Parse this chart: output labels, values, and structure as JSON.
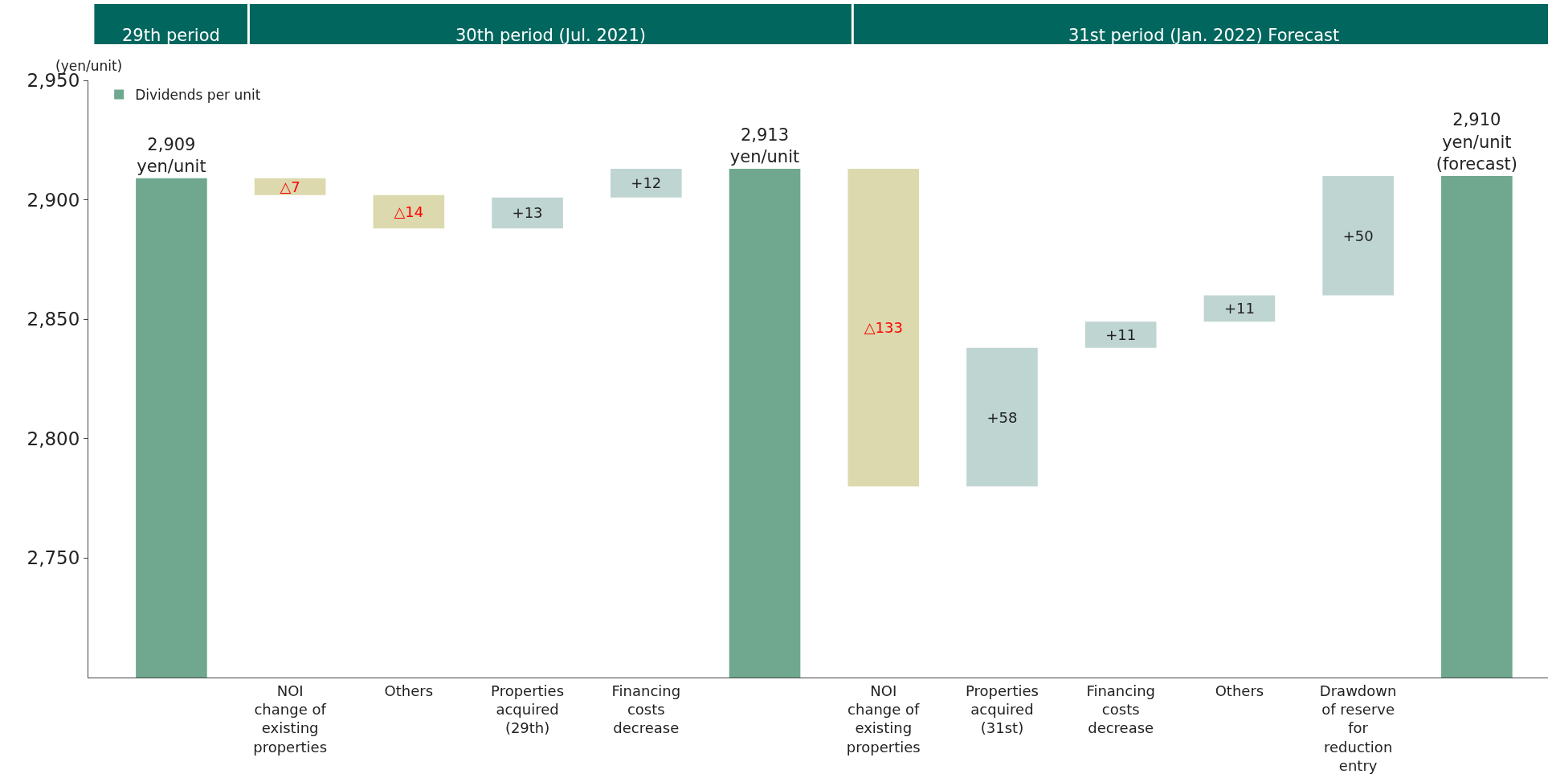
{
  "chart_data": {
    "type": "bar",
    "ylabel": "(yen/unit)",
    "categories": [
      null,
      "NOI\nchange of\nexisting\nproperties",
      "Others",
      "Properties\nacquired\n(29th)",
      "Financing\ncosts\ndecrease",
      null,
      "NOI\nchange of\nexisting\nproperties",
      "Properties\nacquired\n(31st)",
      "Financing\ncosts\ndecrease",
      "Others",
      "Drawdown\nof reserve\nfor\nreduction\nentry",
      null
    ],
    "series": [
      {
        "name": "Dividends per unit",
        "color": "#6fa88e",
        "values": [
          2909,
          null,
          null,
          null,
          null,
          2913,
          null,
          null,
          null,
          null,
          null,
          2910
        ],
        "value_labels": [
          "2,909\nyen/unit",
          null,
          null,
          null,
          null,
          "2,913\nyen/unit",
          null,
          null,
          null,
          null,
          null,
          "2,910\nyen/unit\n(forecast)"
        ]
      },
      {
        "colors": [
          null,
          "#dcd9ae",
          "#dcd9ae",
          "#bfd5d2",
          "#bfd5d2",
          null,
          "#dcd9ae",
          "#bfd5d2",
          "#bfd5d2",
          "#bfd5d2",
          "#bfd5d2",
          null
        ],
        "values": [
          null,
          -7,
          -14,
          13,
          12,
          null,
          -133,
          58,
          11,
          11,
          50,
          null
        ],
        "base": [
          null,
          2909,
          2902,
          2888,
          2901,
          null,
          2913,
          2780,
          2838,
          2849,
          2860,
          null
        ],
        "value_labels": [
          null,
          "△7",
          "△14",
          "+13",
          "+12",
          null,
          "△133",
          "+58",
          "+11",
          "+11",
          "+50",
          null
        ]
      }
    ],
    "ylim": [
      2700,
      2950
    ],
    "yticks": [
      {
        "value": 2950,
        "label": "2,950"
      },
      {
        "value": 2900,
        "label": "2,900"
      },
      {
        "value": 2850,
        "label": "2,850"
      },
      {
        "value": 2800,
        "label": "2,800"
      },
      {
        "value": 2750,
        "label": "2,750"
      }
    ],
    "legend": "top left",
    "annotations": [
      "29th period",
      "30th period (Jul. 2021)",
      "31st period (Jan. 2022) Forecast"
    ]
  }
}
